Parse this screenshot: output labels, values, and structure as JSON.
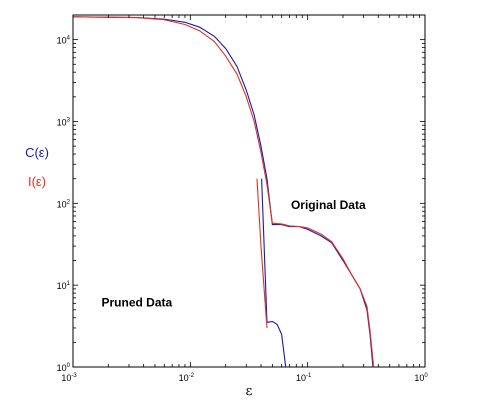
{
  "chart_data": {
    "type": "line",
    "title": "",
    "xlabel": "ε",
    "xscale": "log",
    "yscale": "log",
    "xlim": [
      0.001,
      1
    ],
    "ylim": [
      1,
      20000
    ],
    "grid": false,
    "x_ticks": [
      {
        "base": "10",
        "exp": "-3",
        "value": 0.001
      },
      {
        "base": "10",
        "exp": "-2",
        "value": 0.01
      },
      {
        "base": "10",
        "exp": "-1",
        "value": 0.1
      },
      {
        "base": "10",
        "exp": "0",
        "value": 1
      }
    ],
    "y_ticks": [
      {
        "base": "10",
        "exp": "0",
        "value": 1
      },
      {
        "base": "10",
        "exp": "1",
        "value": 10
      },
      {
        "base": "10",
        "exp": "2",
        "value": 100
      },
      {
        "base": "10",
        "exp": "3",
        "value": 1000
      },
      {
        "base": "10",
        "exp": "4",
        "value": 10000
      }
    ],
    "ylabels": [
      {
        "text": "C(ε)",
        "color": "#1a1aa8"
      },
      {
        "text": "I(ε)",
        "color": "#e03020"
      }
    ],
    "annotations": [
      {
        "text": "Original Data",
        "x": 0.15,
        "y": 85
      },
      {
        "text": "Pruned Data",
        "x": 0.0035,
        "y": 5.5
      }
    ],
    "series": [
      {
        "color": "#1a1aa8",
        "points": [
          [
            0.001,
            19000
          ],
          [
            0.0035,
            18600
          ],
          [
            0.006,
            17800
          ],
          [
            0.009,
            16300
          ],
          [
            0.012,
            14200
          ],
          [
            0.016,
            11000
          ],
          [
            0.02,
            7800
          ],
          [
            0.025,
            4700
          ],
          [
            0.03,
            2400
          ],
          [
            0.035,
            1200
          ],
          [
            0.04,
            500
          ],
          [
            0.045,
            200
          ],
          [
            0.05,
            55
          ],
          [
            0.06,
            55
          ],
          [
            0.07,
            52
          ],
          [
            0.085,
            52
          ],
          [
            0.1,
            48
          ],
          [
            0.13,
            40
          ],
          [
            0.16,
            33
          ],
          [
            0.2,
            20
          ],
          [
            0.24,
            13
          ],
          [
            0.28,
            9
          ],
          [
            0.32,
            5
          ],
          [
            0.34,
            2.5
          ],
          [
            0.36,
            1
          ]
        ]
      },
      {
        "color": "#e03020",
        "points": [
          [
            0.001,
            19000
          ],
          [
            0.0035,
            18600
          ],
          [
            0.006,
            17500
          ],
          [
            0.009,
            15300
          ],
          [
            0.012,
            12800
          ],
          [
            0.016,
            9500
          ],
          [
            0.02,
            6300
          ],
          [
            0.025,
            3800
          ],
          [
            0.03,
            2000
          ],
          [
            0.035,
            1000
          ],
          [
            0.04,
            420
          ],
          [
            0.045,
            170
          ],
          [
            0.05,
            57
          ],
          [
            0.06,
            56
          ],
          [
            0.07,
            53
          ],
          [
            0.085,
            52
          ],
          [
            0.1,
            50
          ],
          [
            0.13,
            42
          ],
          [
            0.16,
            34
          ],
          [
            0.2,
            21
          ],
          [
            0.24,
            13
          ],
          [
            0.28,
            9
          ],
          [
            0.32,
            5.5
          ],
          [
            0.34,
            2.8
          ],
          [
            0.365,
            1
          ]
        ]
      },
      {
        "color": "#1a1aa8",
        "points": [
          [
            0.0405,
            200
          ],
          [
            0.045,
            3.5
          ],
          [
            0.05,
            3.6
          ],
          [
            0.055,
            3.3
          ],
          [
            0.06,
            2.5
          ],
          [
            0.065,
            1
          ]
        ]
      },
      {
        "color": "#e03020",
        "points": [
          [
            0.037,
            200
          ],
          [
            0.04,
            30
          ],
          [
            0.045,
            3
          ]
        ]
      }
    ]
  }
}
